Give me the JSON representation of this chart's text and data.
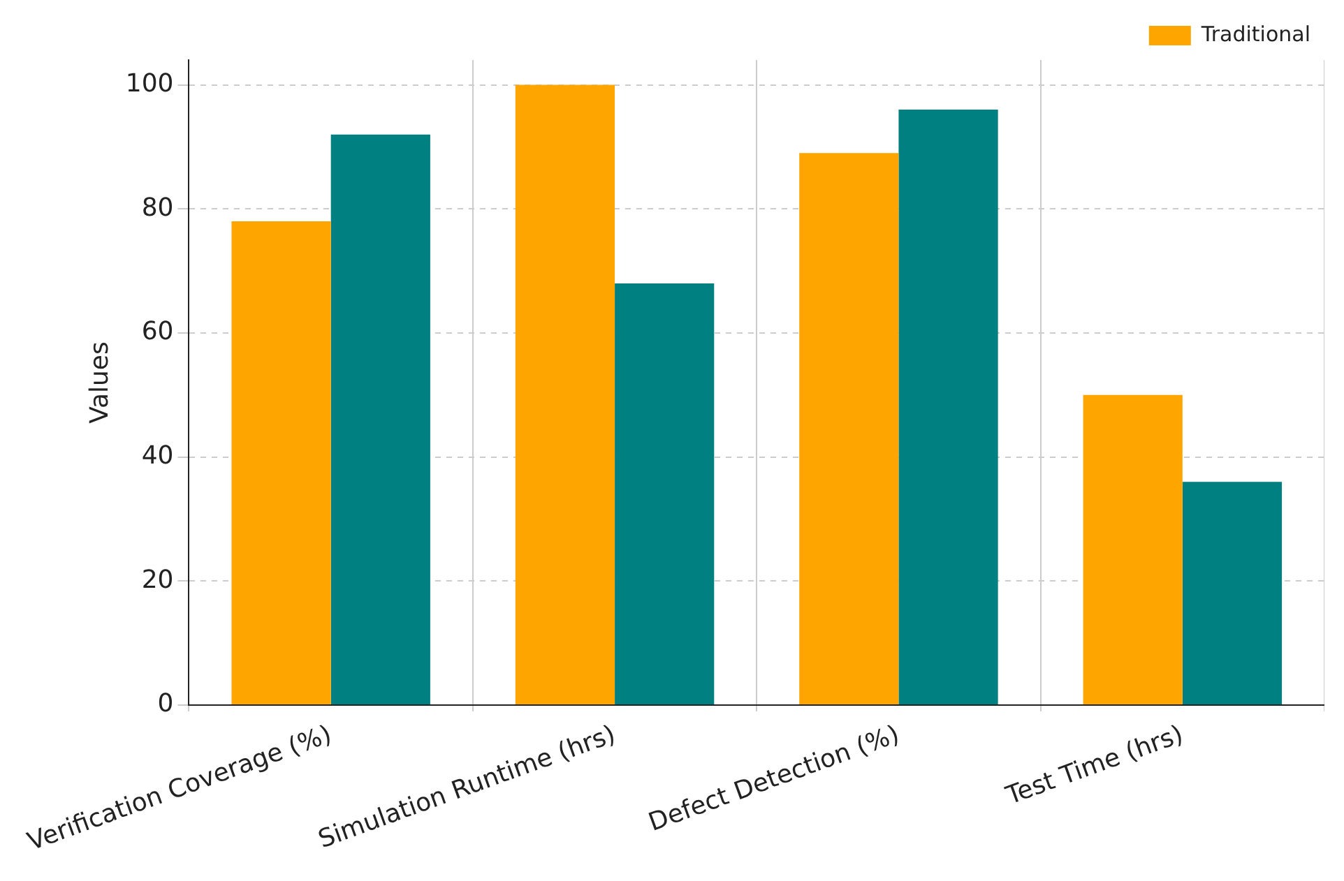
{
  "chart_data": {
    "type": "bar",
    "ylabel": "Values",
    "categories": [
      "Verification Coverage (%)",
      "Simulation Runtime (hrs)",
      "Defect Detection (%)",
      "Test Time (hrs)"
    ],
    "series": [
      {
        "name": "Traditional",
        "color": "#ffa500",
        "values": [
          78,
          100,
          89,
          50
        ]
      },
      {
        "color": "#008080",
        "values": [
          92,
          68,
          96,
          36
        ]
      }
    ],
    "ylim": [
      0,
      104
    ],
    "yticks": [
      0,
      20,
      40,
      60,
      80,
      100
    ],
    "grid": true,
    "legend": "top right"
  }
}
